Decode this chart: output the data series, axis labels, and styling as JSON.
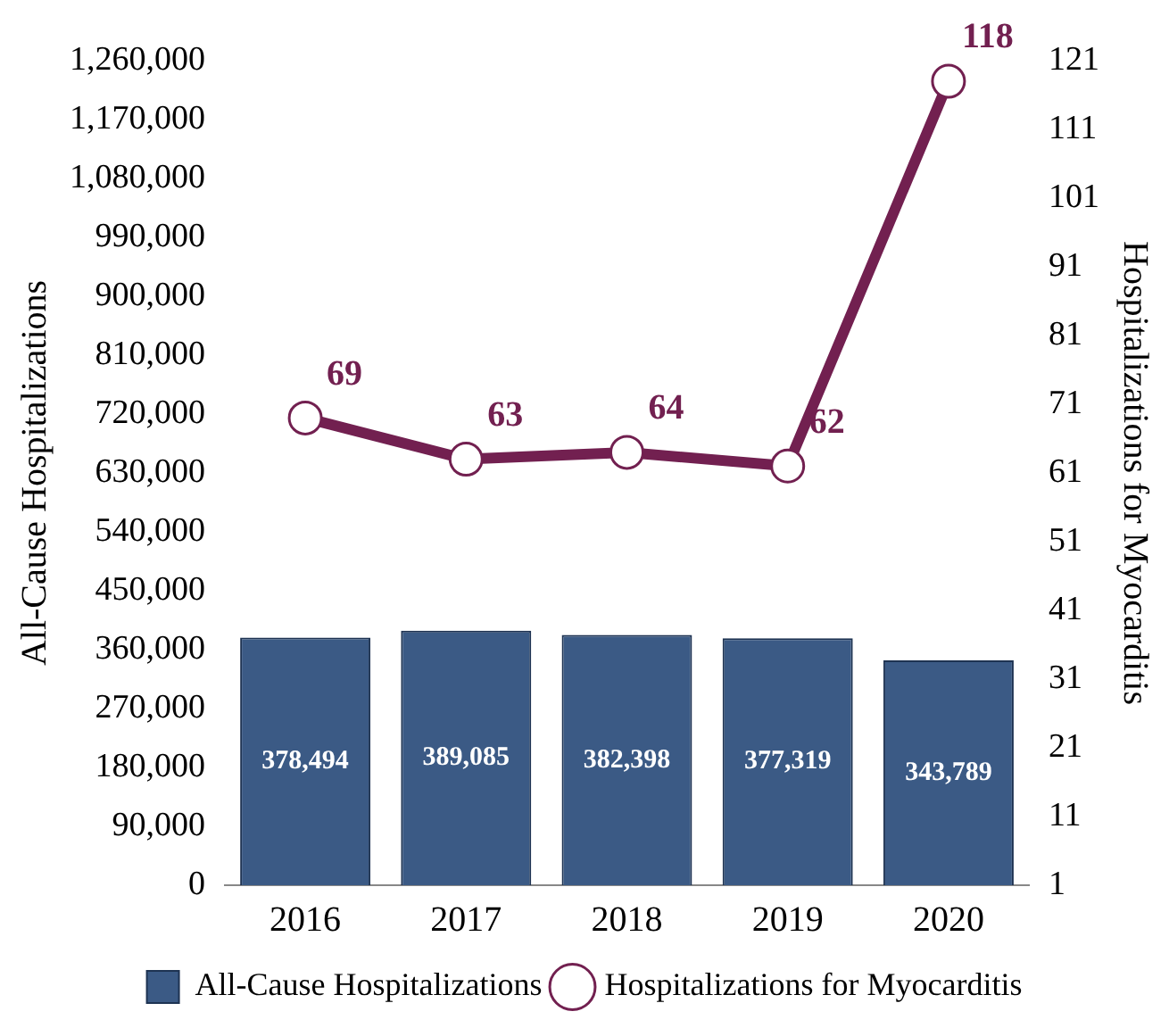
{
  "chart_data": {
    "type": "bar",
    "categories": [
      "2016",
      "2017",
      "2018",
      "2019",
      "2020"
    ],
    "ylabel": "All-Cause Hospitalizations",
    "y2label": "Hospitalizations for Myocarditis",
    "series": [
      {
        "name": "All-Cause Hospitalizations",
        "color": "#3b5a85",
        "values": [
          378494,
          389085,
          382398,
          377319,
          343789
        ],
        "value_labels": [
          "378,494",
          "389,085",
          "382,398",
          "377,319",
          "343,789"
        ]
      },
      {
        "name": "Hospitalizations for Myocarditis",
        "type": "line",
        "axis": "y2",
        "color": "#722050",
        "values": [
          69,
          63,
          64,
          62,
          118
        ],
        "value_labels": [
          "69",
          "63",
          "64",
          "62",
          "118"
        ]
      }
    ],
    "ylim": [
      0,
      1260000
    ],
    "yticks": [
      0,
      {
        "value": 90000,
        "label": "90,000"
      },
      {
        "value": 180000,
        "label": "180,000"
      },
      {
        "value": 270000,
        "label": "270,000"
      },
      {
        "value": 360000,
        "label": "360,000"
      },
      {
        "value": 450000,
        "label": "450,000"
      },
      {
        "value": 540000,
        "label": "540,000"
      },
      {
        "value": 630000,
        "label": "630,000"
      },
      {
        "value": 720000,
        "label": "720,000"
      },
      {
        "value": 810000,
        "label": "810,000"
      },
      {
        "value": 900000,
        "label": "900,000"
      },
      {
        "value": 990000,
        "label": "990,000"
      },
      {
        "value": 1080000,
        "label": "1,080,000"
      },
      {
        "value": 1170000,
        "label": "1,170,000"
      },
      {
        "value": 1260000,
        "label": "1,260,000"
      }
    ],
    "y2lim": [
      1,
      121
    ],
    "y2ticks": [
      1,
      11,
      21,
      31,
      41,
      51,
      61,
      71,
      81,
      91,
      101,
      111,
      121
    ],
    "grid": false,
    "legend": "bottom",
    "marker": "circle",
    "line_style": "solid"
  }
}
